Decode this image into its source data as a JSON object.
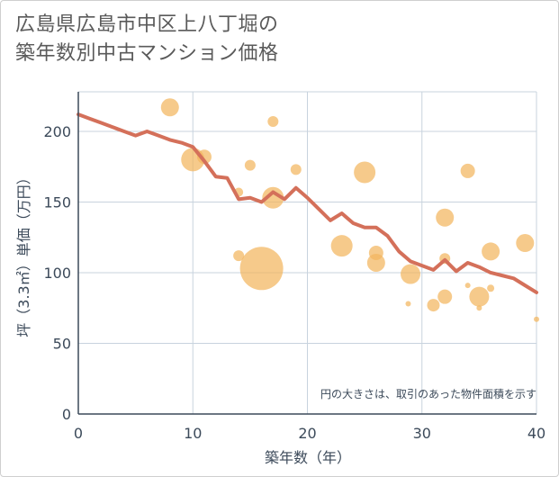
{
  "title_lines": [
    "広島県広島市中区上八丁堀の",
    "築年数別中古マンション価格"
  ],
  "chart_data": {
    "type": "scatter",
    "title": "広島県広島市中区上八丁堀の築年数別中古マンション価格",
    "xlabel": "築年数（年）",
    "ylabel": "坪（3.3㎡）単価（万円）",
    "xlim": [
      0,
      40
    ],
    "ylim": [
      0,
      228
    ],
    "x_ticks": [
      0,
      10,
      20,
      30,
      40
    ],
    "y_ticks": [
      0,
      50,
      100,
      150,
      200
    ],
    "grid": true,
    "note": "円の大きさは、取引のあった物件面積を示す",
    "colors": {
      "bubble": "#f2b65e",
      "line": "#d4705a",
      "grid": "#c8d3de",
      "axis": "#3c4a5a"
    },
    "series": [
      {
        "type": "bubble",
        "points": [
          {
            "x": 8,
            "y": 217,
            "size": 10
          },
          {
            "x": 17,
            "y": 207,
            "size": 6
          },
          {
            "x": 10,
            "y": 180,
            "size": 13
          },
          {
            "x": 11,
            "y": 182,
            "size": 8
          },
          {
            "x": 15,
            "y": 176,
            "size": 6
          },
          {
            "x": 19,
            "y": 173,
            "size": 6
          },
          {
            "x": 25,
            "y": 171,
            "size": 12
          },
          {
            "x": 34,
            "y": 172,
            "size": 8
          },
          {
            "x": 14,
            "y": 157,
            "size": 5
          },
          {
            "x": 17,
            "y": 153,
            "size": 12
          },
          {
            "x": 32,
            "y": 139,
            "size": 10
          },
          {
            "x": 23,
            "y": 119,
            "size": 12
          },
          {
            "x": 26,
            "y": 114,
            "size": 8
          },
          {
            "x": 14,
            "y": 112,
            "size": 6
          },
          {
            "x": 16,
            "y": 103,
            "size": 24
          },
          {
            "x": 26,
            "y": 107,
            "size": 10
          },
          {
            "x": 32,
            "y": 110,
            "size": 6
          },
          {
            "x": 36,
            "y": 115,
            "size": 10
          },
          {
            "x": 39,
            "y": 121,
            "size": 10
          },
          {
            "x": 29,
            "y": 99,
            "size": 11
          },
          {
            "x": 35,
            "y": 83,
            "size": 11
          },
          {
            "x": 32,
            "y": 83,
            "size": 8
          },
          {
            "x": 31,
            "y": 77,
            "size": 7
          },
          {
            "x": 34,
            "y": 91,
            "size": 3
          },
          {
            "x": 36,
            "y": 89,
            "size": 4
          },
          {
            "x": 28.8,
            "y": 78,
            "size": 3
          },
          {
            "x": 35,
            "y": 75,
            "size": 3
          },
          {
            "x": 40,
            "y": 67,
            "size": 3
          }
        ]
      },
      {
        "type": "line",
        "x": [
          0,
          1,
          2,
          3,
          4,
          5,
          6,
          7,
          8,
          9,
          10,
          11,
          12,
          13,
          14,
          15,
          16,
          17,
          18,
          19,
          20,
          21,
          22,
          23,
          24,
          25,
          26,
          27,
          28,
          29,
          30,
          31,
          32,
          33,
          34,
          35,
          36,
          37,
          38,
          39,
          40
        ],
        "y": [
          212,
          209,
          206,
          203,
          200,
          197,
          200,
          197,
          194,
          192,
          189,
          179,
          168,
          167,
          152,
          153,
          150,
          157,
          152,
          160,
          153,
          145,
          137,
          142,
          135,
          132,
          132,
          126,
          115,
          108,
          105,
          102,
          109,
          101,
          107,
          104,
          100,
          98,
          96,
          91,
          86
        ]
      }
    ]
  }
}
